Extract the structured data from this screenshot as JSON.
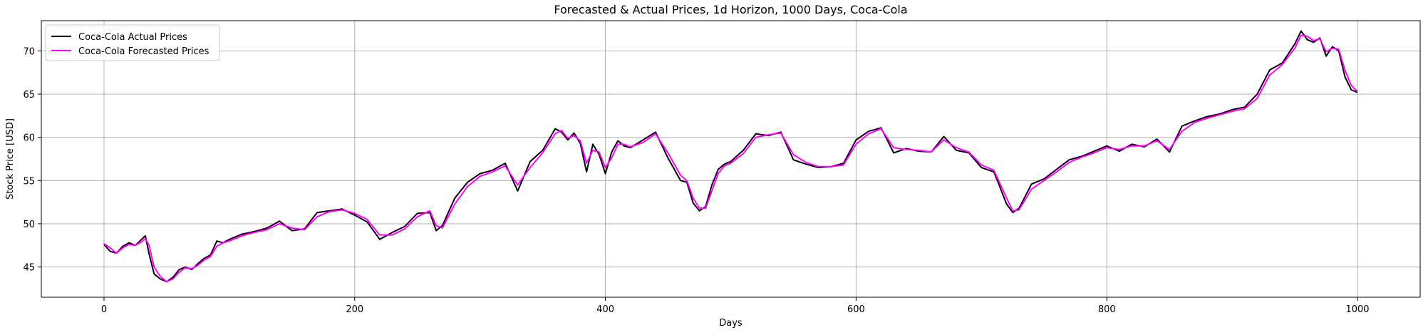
{
  "chart_data": {
    "type": "line",
    "title": "Forecasted & Actual Prices, 1d Horizon, 1000 Days, Coca-Cola",
    "xlabel": "Days",
    "ylabel": "Stock Price [USD]",
    "xlim": [
      -50,
      1050
    ],
    "ylim": [
      41.5,
      73.5
    ],
    "xticks": [
      0,
      200,
      400,
      600,
      800,
      1000
    ],
    "yticks": [
      45,
      50,
      55,
      60,
      65,
      70
    ],
    "grid": true,
    "legend_position": "top-left",
    "series": [
      {
        "name": "Coca-Cola Actual Prices",
        "color": "#000000",
        "x": [
          0,
          5,
          10,
          15,
          20,
          25,
          30,
          33,
          36,
          40,
          45,
          50,
          55,
          60,
          65,
          70,
          75,
          80,
          85,
          90,
          95,
          100,
          110,
          120,
          130,
          140,
          150,
          160,
          170,
          180,
          190,
          200,
          210,
          220,
          230,
          240,
          250,
          260,
          265,
          270,
          280,
          290,
          300,
          310,
          320,
          330,
          340,
          350,
          360,
          365,
          370,
          375,
          380,
          385,
          390,
          395,
          400,
          405,
          410,
          415,
          420,
          430,
          440,
          450,
          460,
          465,
          470,
          475,
          480,
          485,
          490,
          495,
          500,
          510,
          520,
          530,
          540,
          550,
          560,
          570,
          580,
          590,
          600,
          610,
          620,
          630,
          640,
          650,
          660,
          670,
          680,
          690,
          700,
          710,
          720,
          725,
          730,
          740,
          750,
          760,
          770,
          780,
          790,
          800,
          810,
          820,
          830,
          840,
          850,
          860,
          870,
          880,
          890,
          900,
          910,
          920,
          930,
          940,
          950,
          955,
          960,
          965,
          970,
          975,
          980,
          985,
          990,
          995,
          1000
        ],
        "y": [
          47.6,
          46.8,
          46.6,
          47.4,
          47.8,
          47.5,
          48.2,
          48.6,
          46.5,
          44.2,
          43.6,
          43.3,
          43.8,
          44.7,
          45.0,
          44.7,
          45.4,
          46.0,
          46.4,
          48.0,
          47.8,
          48.2,
          48.8,
          49.1,
          49.5,
          50.3,
          49.2,
          49.4,
          51.3,
          51.5,
          51.7,
          51.0,
          50.2,
          48.2,
          49.0,
          49.7,
          51.2,
          51.3,
          49.2,
          49.8,
          53.0,
          54.8,
          55.8,
          56.2,
          57.0,
          53.8,
          57.2,
          58.5,
          61.0,
          60.6,
          59.7,
          60.5,
          59.3,
          56.0,
          59.2,
          58.0,
          55.8,
          58.3,
          59.6,
          59.0,
          58.8,
          59.7,
          60.6,
          57.6,
          55.0,
          54.8,
          52.4,
          51.5,
          52.0,
          54.5,
          56.3,
          56.9,
          57.2,
          58.5,
          60.4,
          60.2,
          60.6,
          57.4,
          56.9,
          56.5,
          56.6,
          57.0,
          59.7,
          60.7,
          61.1,
          58.2,
          58.7,
          58.4,
          58.3,
          60.1,
          58.5,
          58.2,
          56.5,
          56.0,
          52.3,
          51.3,
          51.8,
          54.6,
          55.2,
          56.3,
          57.4,
          57.8,
          58.4,
          59.0,
          58.4,
          59.2,
          58.9,
          59.8,
          58.3,
          61.3,
          61.9,
          62.4,
          62.7,
          63.2,
          63.5,
          65.0,
          67.8,
          68.6,
          70.8,
          72.3,
          71.3,
          71.0,
          71.5,
          69.4,
          70.5,
          70.0,
          67.0,
          65.5,
          65.2
        ]
      },
      {
        "name": "Coca-Cola Forecasted Prices",
        "color": "#ff00ff",
        "x": [
          0,
          5,
          10,
          15,
          20,
          25,
          30,
          33,
          36,
          40,
          45,
          50,
          55,
          60,
          65,
          70,
          75,
          80,
          85,
          90,
          95,
          100,
          110,
          120,
          130,
          140,
          150,
          160,
          170,
          180,
          190,
          200,
          210,
          220,
          230,
          240,
          250,
          260,
          265,
          270,
          280,
          290,
          300,
          310,
          320,
          330,
          340,
          350,
          360,
          365,
          370,
          375,
          380,
          385,
          390,
          395,
          400,
          405,
          410,
          415,
          420,
          430,
          440,
          450,
          460,
          465,
          470,
          475,
          480,
          485,
          490,
          495,
          500,
          510,
          520,
          530,
          540,
          550,
          560,
          570,
          580,
          590,
          600,
          610,
          620,
          630,
          640,
          650,
          660,
          670,
          680,
          690,
          700,
          710,
          720,
          725,
          730,
          740,
          750,
          760,
          770,
          780,
          790,
          800,
          810,
          820,
          830,
          840,
          850,
          860,
          870,
          880,
          890,
          900,
          910,
          920,
          930,
          940,
          950,
          955,
          960,
          965,
          970,
          975,
          980,
          985,
          990,
          995,
          1000
        ],
        "y": [
          47.7,
          47.2,
          46.6,
          47.2,
          47.6,
          47.5,
          47.9,
          48.3,
          47.5,
          45.0,
          43.9,
          43.3,
          43.6,
          44.4,
          44.9,
          44.8,
          45.2,
          45.8,
          46.2,
          47.4,
          47.8,
          48.0,
          48.6,
          49.0,
          49.3,
          50.0,
          49.5,
          49.3,
          50.8,
          51.4,
          51.6,
          51.2,
          50.5,
          48.7,
          48.7,
          49.4,
          50.8,
          51.5,
          49.8,
          49.5,
          52.3,
          54.3,
          55.5,
          56.0,
          56.7,
          54.5,
          56.5,
          58.2,
          60.4,
          60.8,
          59.9,
          60.2,
          59.6,
          57.0,
          58.5,
          58.3,
          56.5,
          57.6,
          59.2,
          59.2,
          58.9,
          59.4,
          60.4,
          58.2,
          55.6,
          55.0,
          53.0,
          51.8,
          51.8,
          53.8,
          55.8,
          56.7,
          57.0,
          58.1,
          60.0,
          60.3,
          60.5,
          58.0,
          57.1,
          56.6,
          56.6,
          56.8,
          59.2,
          60.4,
          61.0,
          58.8,
          58.6,
          58.5,
          58.3,
          59.7,
          58.8,
          58.3,
          56.8,
          56.2,
          53.0,
          51.5,
          51.6,
          54.0,
          55.0,
          56.0,
          57.1,
          57.7,
          58.2,
          58.8,
          58.6,
          59.0,
          59.0,
          59.6,
          58.6,
          60.7,
          61.7,
          62.2,
          62.6,
          63.0,
          63.3,
          64.5,
          67.2,
          68.4,
          70.3,
          71.8,
          71.7,
          71.2,
          71.4,
          69.9,
          70.3,
          70.2,
          67.8,
          66.0,
          65.3
        ]
      }
    ]
  }
}
